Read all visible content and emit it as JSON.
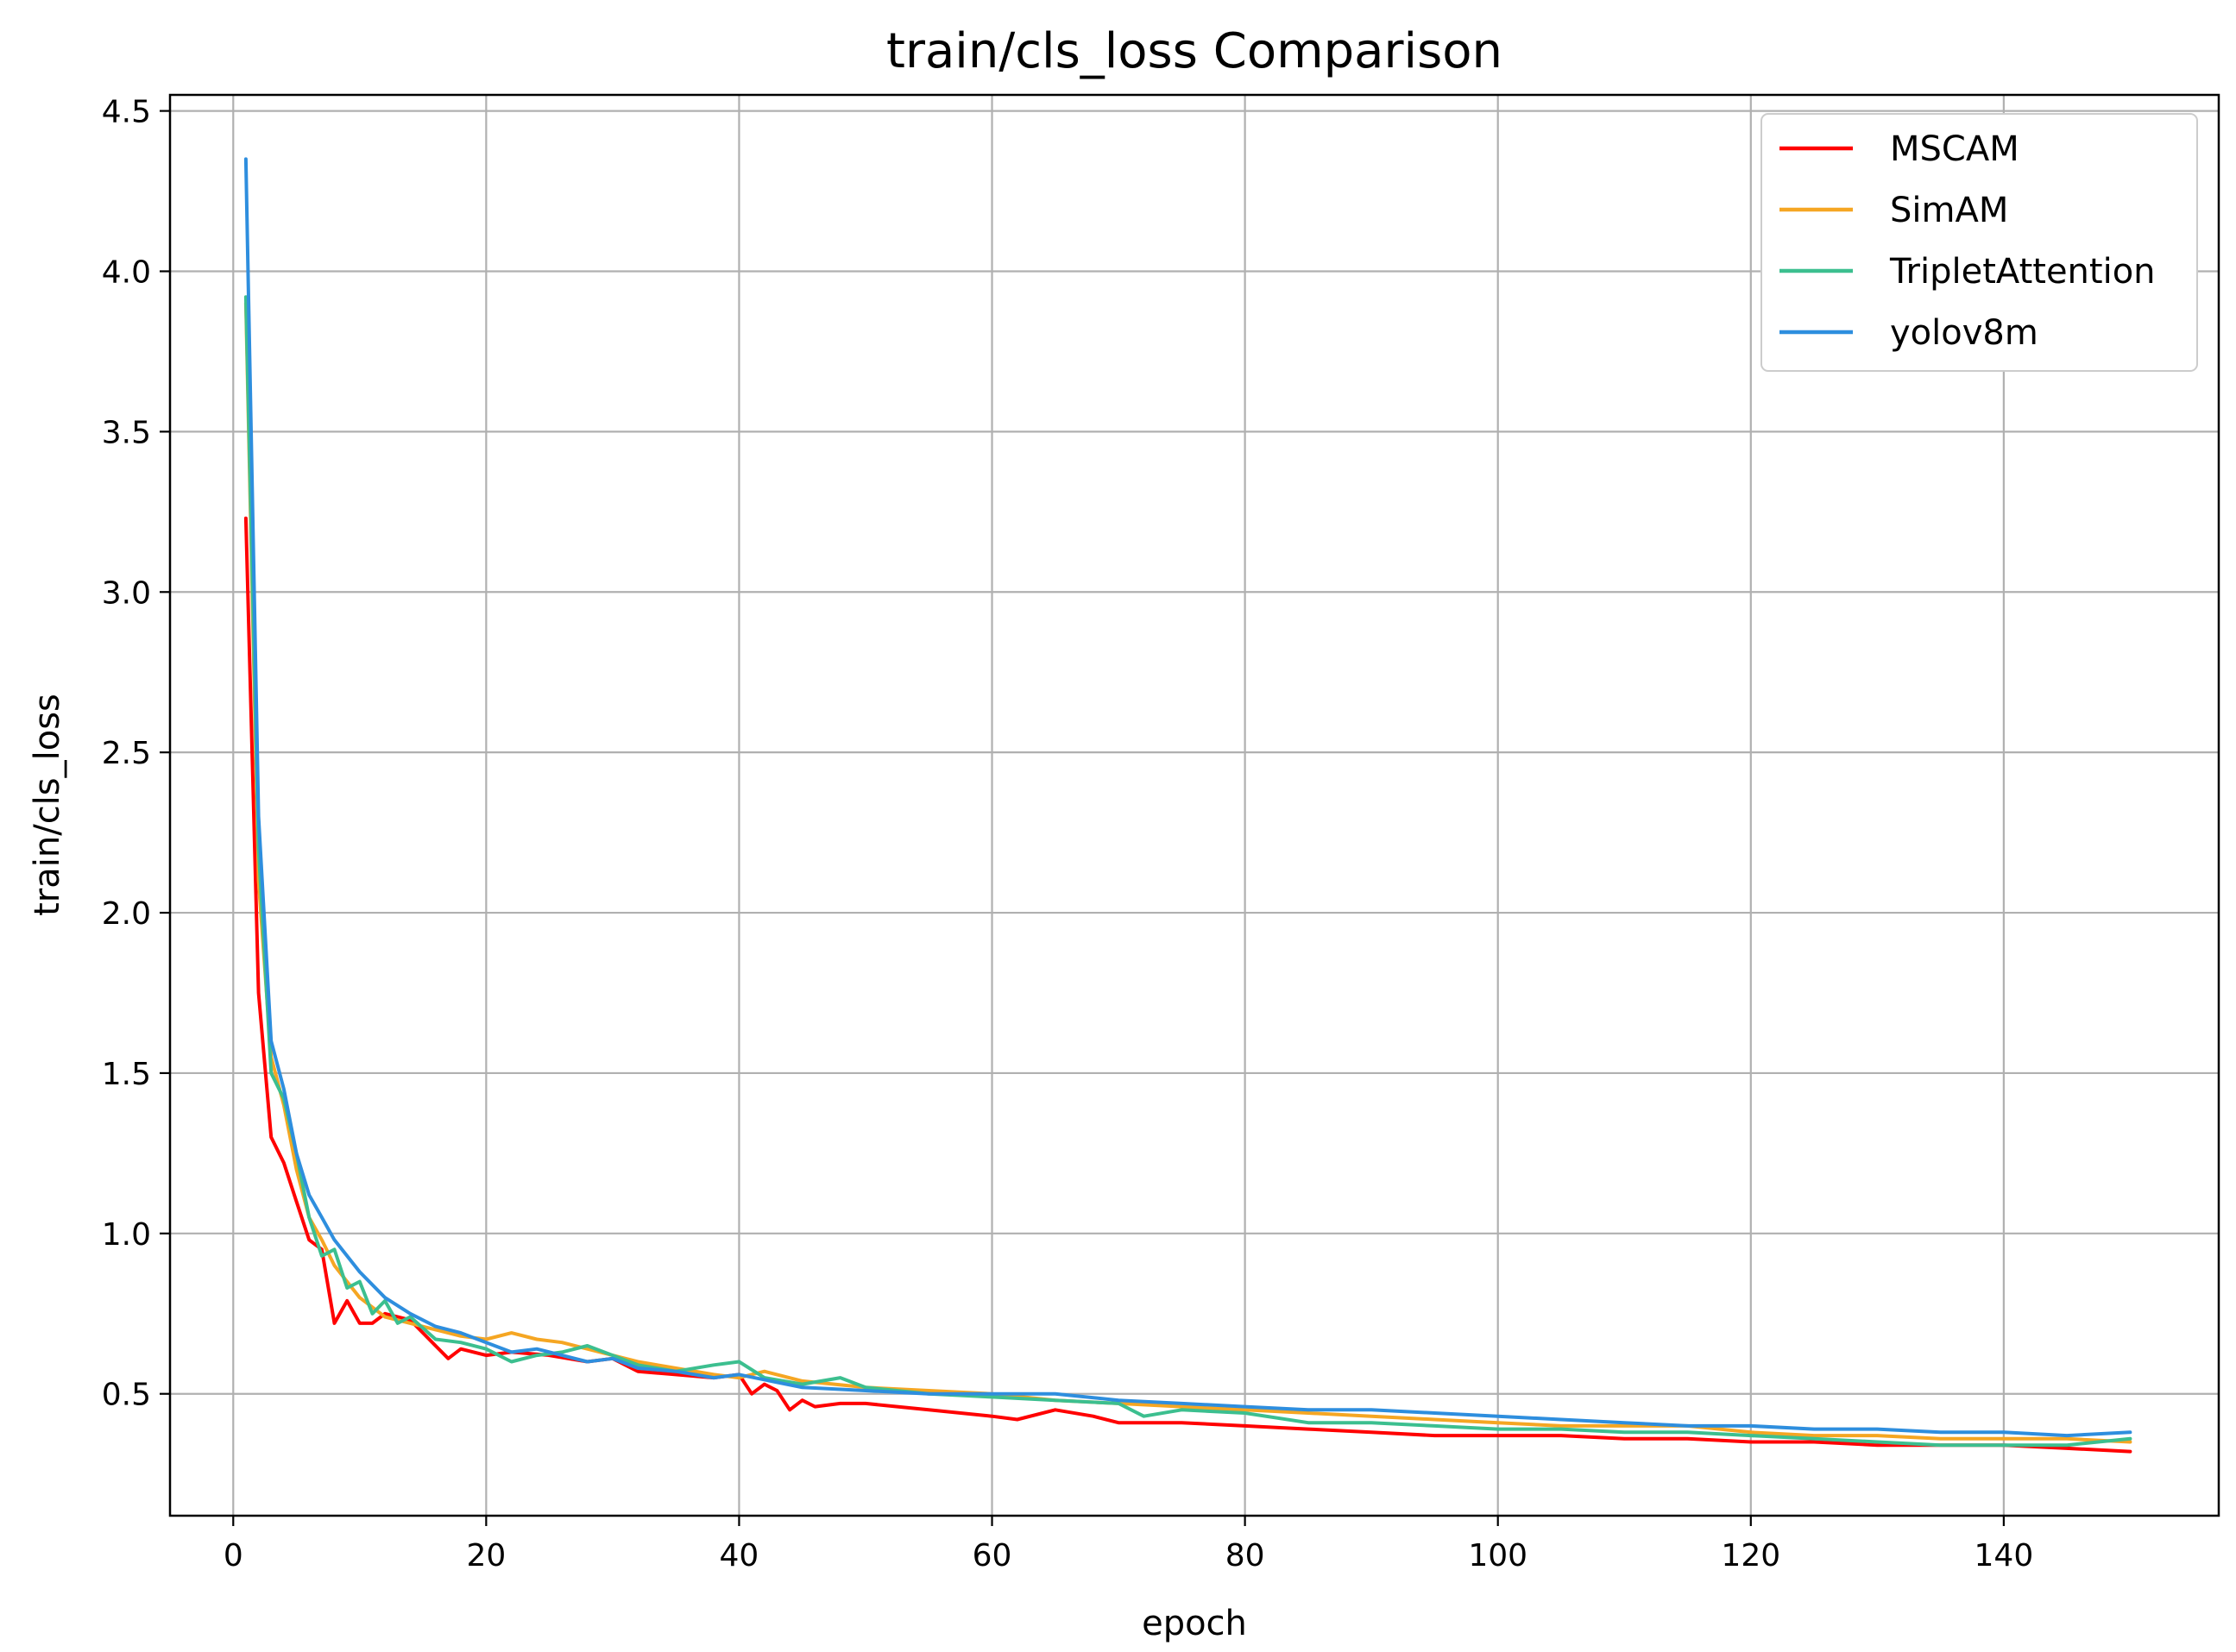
{
  "chart_data": {
    "type": "line",
    "title": "train/cls_loss Comparison",
    "xlabel": "epoch",
    "ylabel": "train/cls_loss",
    "xlim": [
      -5,
      157
    ],
    "ylim": [
      0.12,
      4.55
    ],
    "xticks": [
      0,
      20,
      40,
      60,
      80,
      100,
      120,
      140
    ],
    "yticks": [
      0.5,
      1.0,
      1.5,
      2.0,
      2.5,
      3.0,
      3.5,
      4.0,
      4.5
    ],
    "grid": true,
    "legend_position": "top-right",
    "series": [
      {
        "name": "MSCAM",
        "color": "#ff0000",
        "points": [
          [
            1,
            3.23
          ],
          [
            2,
            1.75
          ],
          [
            3,
            1.3
          ],
          [
            4,
            1.22
          ],
          [
            5,
            1.1
          ],
          [
            6,
            0.98
          ],
          [
            7,
            0.95
          ],
          [
            8,
            0.72
          ],
          [
            9,
            0.79
          ],
          [
            10,
            0.72
          ],
          [
            11,
            0.72
          ],
          [
            12,
            0.75
          ],
          [
            14,
            0.73
          ],
          [
            16,
            0.65
          ],
          [
            17,
            0.61
          ],
          [
            18,
            0.64
          ],
          [
            20,
            0.62
          ],
          [
            22,
            0.63
          ],
          [
            25,
            0.62
          ],
          [
            28,
            0.6
          ],
          [
            30,
            0.61
          ],
          [
            32,
            0.57
          ],
          [
            35,
            0.56
          ],
          [
            38,
            0.55
          ],
          [
            40,
            0.56
          ],
          [
            41,
            0.5
          ],
          [
            42,
            0.53
          ],
          [
            43,
            0.51
          ],
          [
            44,
            0.45
          ],
          [
            45,
            0.48
          ],
          [
            46,
            0.46
          ],
          [
            48,
            0.47
          ],
          [
            50,
            0.47
          ],
          [
            55,
            0.45
          ],
          [
            60,
            0.43
          ],
          [
            62,
            0.42
          ],
          [
            65,
            0.45
          ],
          [
            68,
            0.43
          ],
          [
            70,
            0.41
          ],
          [
            75,
            0.41
          ],
          [
            80,
            0.4
          ],
          [
            85,
            0.39
          ],
          [
            90,
            0.38
          ],
          [
            95,
            0.37
          ],
          [
            100,
            0.37
          ],
          [
            105,
            0.37
          ],
          [
            110,
            0.36
          ],
          [
            115,
            0.36
          ],
          [
            120,
            0.35
          ],
          [
            125,
            0.35
          ],
          [
            130,
            0.34
          ],
          [
            135,
            0.34
          ],
          [
            140,
            0.34
          ],
          [
            145,
            0.33
          ],
          [
            150,
            0.32
          ]
        ]
      },
      {
        "name": "SimAM",
        "color": "#f5a623",
        "points": [
          [
            1,
            3.9
          ],
          [
            2,
            2.1
          ],
          [
            3,
            1.55
          ],
          [
            4,
            1.4
          ],
          [
            5,
            1.2
          ],
          [
            6,
            1.05
          ],
          [
            7,
            0.98
          ],
          [
            8,
            0.9
          ],
          [
            10,
            0.8
          ],
          [
            12,
            0.74
          ],
          [
            14,
            0.72
          ],
          [
            16,
            0.7
          ],
          [
            18,
            0.68
          ],
          [
            20,
            0.67
          ],
          [
            22,
            0.69
          ],
          [
            24,
            0.67
          ],
          [
            26,
            0.66
          ],
          [
            28,
            0.64
          ],
          [
            30,
            0.62
          ],
          [
            32,
            0.6
          ],
          [
            35,
            0.58
          ],
          [
            38,
            0.56
          ],
          [
            40,
            0.55
          ],
          [
            42,
            0.57
          ],
          [
            45,
            0.54
          ],
          [
            50,
            0.52
          ],
          [
            55,
            0.51
          ],
          [
            60,
            0.5
          ],
          [
            65,
            0.48
          ],
          [
            70,
            0.47
          ],
          [
            75,
            0.46
          ],
          [
            80,
            0.45
          ],
          [
            85,
            0.44
          ],
          [
            90,
            0.43
          ],
          [
            95,
            0.42
          ],
          [
            100,
            0.41
          ],
          [
            105,
            0.4
          ],
          [
            110,
            0.4
          ],
          [
            115,
            0.4
          ],
          [
            120,
            0.38
          ],
          [
            125,
            0.37
          ],
          [
            130,
            0.37
          ],
          [
            135,
            0.36
          ],
          [
            140,
            0.36
          ],
          [
            145,
            0.36
          ],
          [
            150,
            0.35
          ]
        ]
      },
      {
        "name": "TripletAttention",
        "color": "#3cbf8f",
        "points": [
          [
            1,
            3.92
          ],
          [
            2,
            2.2
          ],
          [
            3,
            1.5
          ],
          [
            4,
            1.42
          ],
          [
            5,
            1.25
          ],
          [
            6,
            1.05
          ],
          [
            7,
            0.93
          ],
          [
            8,
            0.95
          ],
          [
            9,
            0.83
          ],
          [
            10,
            0.85
          ],
          [
            11,
            0.75
          ],
          [
            12,
            0.79
          ],
          [
            13,
            0.72
          ],
          [
            14,
            0.74
          ],
          [
            16,
            0.67
          ],
          [
            18,
            0.66
          ],
          [
            20,
            0.64
          ],
          [
            22,
            0.6
          ],
          [
            24,
            0.62
          ],
          [
            26,
            0.63
          ],
          [
            28,
            0.65
          ],
          [
            30,
            0.62
          ],
          [
            32,
            0.59
          ],
          [
            35,
            0.57
          ],
          [
            38,
            0.59
          ],
          [
            40,
            0.6
          ],
          [
            42,
            0.55
          ],
          [
            45,
            0.53
          ],
          [
            48,
            0.55
          ],
          [
            50,
            0.52
          ],
          [
            55,
            0.5
          ],
          [
            60,
            0.49
          ],
          [
            65,
            0.48
          ],
          [
            70,
            0.47
          ],
          [
            72,
            0.43
          ],
          [
            75,
            0.45
          ],
          [
            80,
            0.44
          ],
          [
            85,
            0.41
          ],
          [
            90,
            0.41
          ],
          [
            95,
            0.4
          ],
          [
            100,
            0.39
          ],
          [
            105,
            0.39
          ],
          [
            110,
            0.38
          ],
          [
            115,
            0.38
          ],
          [
            120,
            0.37
          ],
          [
            125,
            0.36
          ],
          [
            130,
            0.35
          ],
          [
            135,
            0.34
          ],
          [
            140,
            0.34
          ],
          [
            145,
            0.34
          ],
          [
            150,
            0.36
          ]
        ]
      },
      {
        "name": "yolov8m",
        "color": "#2e8ede",
        "points": [
          [
            1,
            4.35
          ],
          [
            2,
            2.3
          ],
          [
            3,
            1.6
          ],
          [
            4,
            1.45
          ],
          [
            5,
            1.25
          ],
          [
            6,
            1.12
          ],
          [
            7,
            1.05
          ],
          [
            8,
            0.98
          ],
          [
            10,
            0.88
          ],
          [
            12,
            0.8
          ],
          [
            14,
            0.75
          ],
          [
            16,
            0.71
          ],
          [
            18,
            0.69
          ],
          [
            20,
            0.66
          ],
          [
            22,
            0.63
          ],
          [
            24,
            0.64
          ],
          [
            26,
            0.62
          ],
          [
            28,
            0.6
          ],
          [
            30,
            0.61
          ],
          [
            32,
            0.58
          ],
          [
            35,
            0.57
          ],
          [
            38,
            0.55
          ],
          [
            40,
            0.56
          ],
          [
            45,
            0.52
          ],
          [
            50,
            0.51
          ],
          [
            55,
            0.5
          ],
          [
            60,
            0.5
          ],
          [
            65,
            0.5
          ],
          [
            70,
            0.48
          ],
          [
            75,
            0.47
          ],
          [
            80,
            0.46
          ],
          [
            85,
            0.45
          ],
          [
            90,
            0.45
          ],
          [
            95,
            0.44
          ],
          [
            100,
            0.43
          ],
          [
            105,
            0.42
          ],
          [
            110,
            0.41
          ],
          [
            115,
            0.4
          ],
          [
            120,
            0.4
          ],
          [
            125,
            0.39
          ],
          [
            130,
            0.39
          ],
          [
            135,
            0.38
          ],
          [
            140,
            0.38
          ],
          [
            145,
            0.37
          ],
          [
            150,
            0.38
          ]
        ]
      }
    ]
  }
}
